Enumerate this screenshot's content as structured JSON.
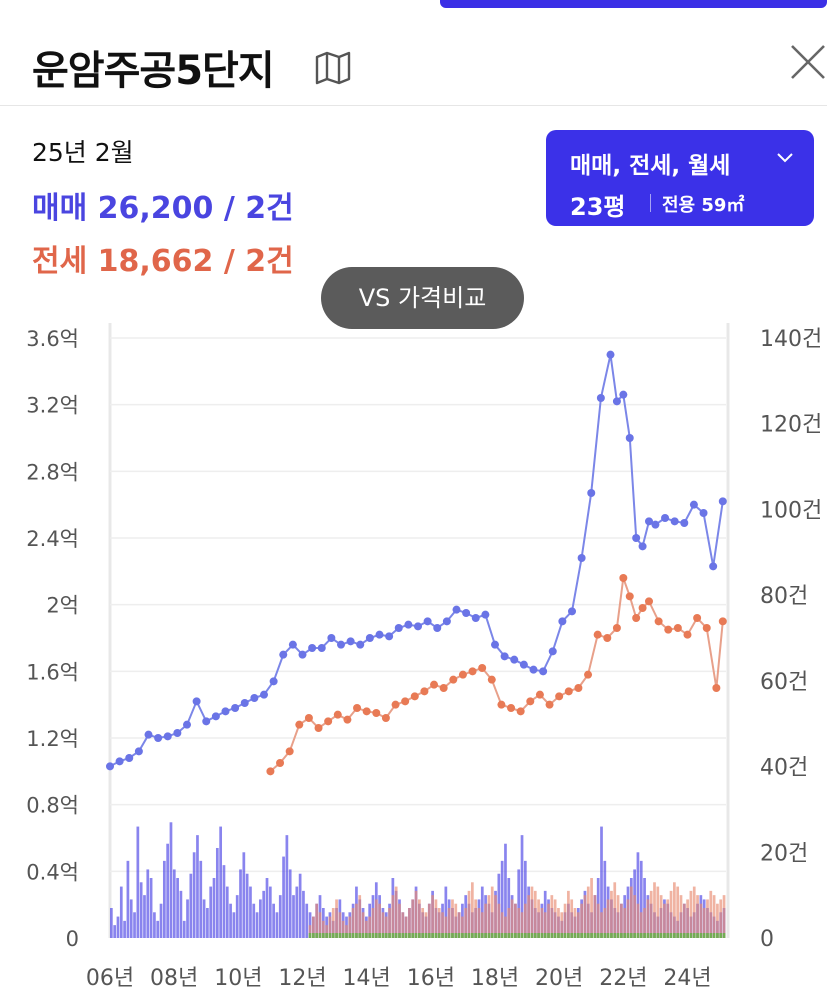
{
  "header": {
    "title": "운암주공5단지",
    "map_icon": "map-icon",
    "close_icon": "close-icon"
  },
  "summary": {
    "period": "25년 2월",
    "sale": "매매 26,200 / 2건",
    "jeonse": "전세 18,662 / 2건"
  },
  "filter": {
    "types": "매매, 전세, 월세",
    "size": "23평",
    "area": "전용 59㎡"
  },
  "compare_button": "VS 가격비교",
  "colors": {
    "accent": "#3b31e8",
    "sale": "#4a45e0",
    "sale_line": "#7b86e8",
    "jeonse": "#e0664a",
    "jeonse_line": "#e8a08a",
    "wolse_bar": "#6ab04c"
  },
  "chart_data": {
    "type": "line",
    "x_tick_labels": [
      "06년",
      "08년",
      "10년",
      "12년",
      "14년",
      "16년",
      "18년",
      "20년",
      "22년",
      "24년"
    ],
    "y_left": {
      "tick_labels": [
        "0",
        "0.4억",
        "0.8억",
        "1.2억",
        "1.6억",
        "2억",
        "2.4억",
        "2.8억",
        "3.2억",
        "3.6억"
      ],
      "range": [
        0,
        3.6
      ]
    },
    "y_right": {
      "tick_labels": [
        "0",
        "20건",
        "40건",
        "60건",
        "80건",
        "100건",
        "120건",
        "140건"
      ],
      "range": [
        0,
        140
      ]
    },
    "grid": true,
    "series": [
      {
        "kind": "line",
        "x": [
          2006.0,
          2006.3,
          2006.6,
          2006.9,
          2007.2,
          2007.5,
          2007.8,
          2008.1,
          2008.4,
          2008.7,
          2009.0,
          2009.3,
          2009.6,
          2009.9,
          2010.2,
          2010.5,
          2010.8,
          2011.1,
          2011.4,
          2011.7,
          2012.0,
          2012.3,
          2012.6,
          2012.9,
          2013.2,
          2013.5,
          2013.8,
          2014.1,
          2014.4,
          2014.7,
          2015.0,
          2015.3,
          2015.6,
          2015.9,
          2016.2,
          2016.5,
          2016.8,
          2017.1,
          2017.4,
          2017.7,
          2018.0,
          2018.3,
          2018.6,
          2018.9,
          2019.2,
          2019.5,
          2019.8,
          2020.1,
          2020.4,
          2020.7,
          2021.0,
          2021.3,
          2021.6,
          2021.8,
          2022.0,
          2022.2,
          2022.4,
          2022.6,
          2022.8,
          2023.0,
          2023.3,
          2023.6,
          2023.9,
          2024.2,
          2024.5,
          2024.8,
          2025.1
        ],
        "values": [
          1.03,
          1.06,
          1.08,
          1.12,
          1.22,
          1.2,
          1.21,
          1.23,
          1.28,
          1.42,
          1.3,
          1.33,
          1.36,
          1.38,
          1.41,
          1.44,
          1.46,
          1.54,
          1.7,
          1.76,
          1.7,
          1.74,
          1.74,
          1.8,
          1.76,
          1.78,
          1.76,
          1.8,
          1.82,
          1.81,
          1.86,
          1.88,
          1.87,
          1.9,
          1.86,
          1.9,
          1.97,
          1.95,
          1.92,
          1.94,
          1.76,
          1.69,
          1.67,
          1.64,
          1.61,
          1.6,
          1.72,
          1.9,
          1.96,
          2.28,
          2.67,
          3.24,
          3.5,
          3.22,
          3.26,
          3.0,
          2.4,
          2.35,
          2.5,
          2.48,
          2.52,
          2.5,
          2.49,
          2.6,
          2.55,
          2.23,
          2.62
        ]
      },
      {
        "kind": "line",
        "x": [
          2011.0,
          2011.3,
          2011.6,
          2011.9,
          2012.2,
          2012.5,
          2012.8,
          2013.1,
          2013.4,
          2013.7,
          2014.0,
          2014.3,
          2014.6,
          2014.9,
          2015.2,
          2015.5,
          2015.8,
          2016.1,
          2016.4,
          2016.7,
          2017.0,
          2017.3,
          2017.6,
          2017.9,
          2018.2,
          2018.5,
          2018.8,
          2019.1,
          2019.4,
          2019.7,
          2020.0,
          2020.3,
          2020.6,
          2020.9,
          2021.2,
          2021.5,
          2021.8,
          2022.0,
          2022.2,
          2022.4,
          2022.6,
          2022.8,
          2023.1,
          2023.4,
          2023.7,
          2024.0,
          2024.3,
          2024.6,
          2024.9,
          2025.1
        ],
        "values": [
          1.0,
          1.05,
          1.12,
          1.28,
          1.32,
          1.26,
          1.3,
          1.34,
          1.31,
          1.38,
          1.36,
          1.35,
          1.32,
          1.4,
          1.42,
          1.45,
          1.48,
          1.52,
          1.5,
          1.55,
          1.58,
          1.6,
          1.62,
          1.55,
          1.4,
          1.38,
          1.36,
          1.42,
          1.46,
          1.4,
          1.45,
          1.48,
          1.5,
          1.58,
          1.82,
          1.8,
          1.86,
          2.16,
          2.05,
          1.92,
          1.98,
          2.02,
          1.9,
          1.85,
          1.86,
          1.82,
          1.92,
          1.86,
          1.5,
          1.9
        ]
      }
    ],
    "bars": {
      "x_range": [
        2006,
        2025.2
      ],
      "sale_counts": [
        7,
        3,
        5,
        12,
        4,
        18,
        9,
        6,
        26,
        13,
        10,
        16,
        14,
        6,
        4,
        8,
        18,
        22,
        27,
        16,
        14,
        11,
        4,
        9,
        15,
        20,
        24,
        18,
        9,
        7,
        12,
        14,
        21,
        26,
        17,
        12,
        8,
        6,
        10,
        16,
        20,
        15,
        12,
        8,
        6,
        9,
        11,
        14,
        12,
        8,
        6,
        10,
        19,
        24,
        16,
        10,
        12,
        15,
        11,
        8,
        6,
        5,
        8,
        10,
        7,
        5,
        6,
        4,
        7,
        9,
        6,
        5,
        6,
        8,
        12,
        9,
        7,
        5,
        8,
        10,
        13,
        10,
        7,
        6,
        8,
        14,
        11,
        9,
        6,
        5,
        7,
        9,
        12,
        8,
        6,
        5,
        8,
        11,
        7,
        6,
        8,
        12,
        9,
        7,
        5,
        6,
        8,
        10,
        8,
        6,
        7,
        9,
        12,
        10,
        8,
        6,
        11,
        15,
        18,
        22,
        14,
        10,
        8,
        16,
        24,
        18,
        12,
        9,
        7,
        6,
        8,
        11,
        9,
        7,
        6,
        5,
        4,
        6,
        8,
        6,
        5,
        7,
        9,
        11,
        8,
        6,
        10,
        14,
        26,
        18,
        12,
        9,
        7,
        6,
        8,
        10,
        12,
        14,
        16,
        20,
        18,
        14,
        10,
        8,
        6,
        5,
        7,
        9,
        8,
        6,
        5,
        4,
        6,
        8,
        7,
        5,
        6,
        8,
        10,
        9,
        7,
        6,
        5,
        4,
        6,
        7
      ],
      "jeonse_counts": [
        0,
        0,
        0,
        0,
        0,
        0,
        0,
        0,
        0,
        0,
        0,
        0,
        0,
        0,
        0,
        0,
        0,
        0,
        0,
        0,
        0,
        0,
        0,
        0,
        0,
        0,
        0,
        0,
        0,
        0,
        0,
        0,
        0,
        0,
        0,
        0,
        0,
        0,
        0,
        0,
        0,
        0,
        0,
        0,
        0,
        0,
        0,
        0,
        0,
        0,
        0,
        0,
        0,
        0,
        0,
        0,
        0,
        0,
        0,
        0,
        3,
        5,
        8,
        6,
        4,
        3,
        5,
        7,
        9,
        6,
        4,
        3,
        5,
        7,
        8,
        10,
        6,
        4,
        5,
        7,
        9,
        8,
        6,
        5,
        7,
        10,
        12,
        8,
        6,
        5,
        7,
        9,
        11,
        9,
        7,
        6,
        8,
        10,
        9,
        7,
        6,
        5,
        7,
        9,
        8,
        6,
        5,
        7,
        11,
        13,
        9,
        7,
        6,
        8,
        10,
        12,
        10,
        8,
        6,
        5,
        7,
        9,
        8,
        7,
        6,
        8,
        10,
        12,
        11,
        9,
        7,
        6,
        8,
        10,
        9,
        7,
        6,
        8,
        11,
        9,
        7,
        6,
        8,
        10,
        12,
        14,
        10,
        8,
        6,
        7,
        9,
        11,
        13,
        10,
        8,
        7,
        9,
        12,
        10,
        8,
        6,
        7,
        9,
        11,
        13,
        12,
        10,
        8,
        9,
        11,
        13,
        12,
        10,
        8,
        9,
        11,
        12,
        10,
        8,
        7,
        9,
        11,
        10,
        8,
        9,
        10
      ]
    }
  }
}
